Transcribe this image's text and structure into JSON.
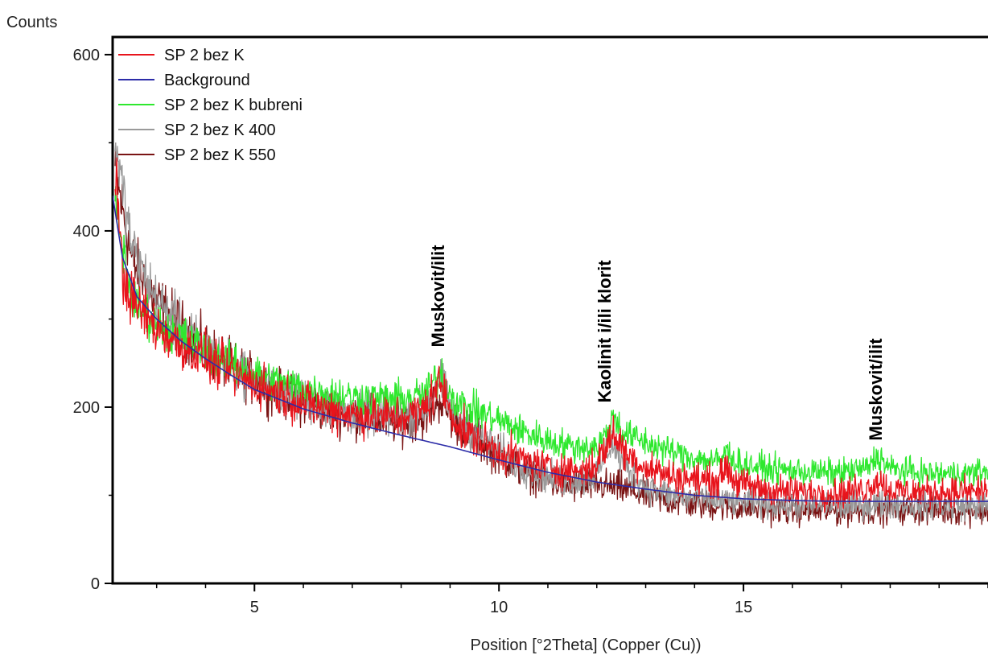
{
  "chart_data": {
    "type": "line",
    "title": "",
    "xlabel": "Position [°2Theta] (Copper (Cu))",
    "ylabel": "Counts",
    "xlim": [
      2.1,
      20
    ],
    "ylim": [
      0,
      620
    ],
    "xticks": [
      5,
      10,
      15
    ],
    "yticks": [
      0,
      200,
      400,
      600
    ],
    "grid": false,
    "legend": "top-left",
    "series": [
      {
        "name": "SP 2 bez K",
        "color": "#e8141c",
        "noise": 16,
        "points": [
          [
            2.15,
            480
          ],
          [
            2.3,
            350
          ],
          [
            2.5,
            320
          ],
          [
            3,
            290
          ],
          [
            3.5,
            270
          ],
          [
            4,
            255
          ],
          [
            4.5,
            240
          ],
          [
            5,
            228
          ],
          [
            5.5,
            215
          ],
          [
            6,
            205
          ],
          [
            6.5,
            198
          ],
          [
            7,
            192
          ],
          [
            7.5,
            190
          ],
          [
            8,
            188
          ],
          [
            8.4,
            195
          ],
          [
            8.65,
            215
          ],
          [
            8.8,
            228
          ],
          [
            8.95,
            205
          ],
          [
            9.2,
            175
          ],
          [
            9.6,
            162
          ],
          [
            10,
            150
          ],
          [
            10.5,
            140
          ],
          [
            11,
            132
          ],
          [
            11.5,
            128
          ],
          [
            11.9,
            130
          ],
          [
            12.2,
            155
          ],
          [
            12.35,
            172
          ],
          [
            12.55,
            150
          ],
          [
            12.9,
            135
          ],
          [
            13.5,
            122
          ],
          [
            14,
            118
          ],
          [
            14.5,
            116
          ],
          [
            14.65,
            135
          ],
          [
            14.8,
            118
          ],
          [
            15,
            112
          ],
          [
            15.5,
            106
          ],
          [
            16,
            104
          ],
          [
            16.5,
            103
          ],
          [
            17,
            103
          ],
          [
            17.5,
            107
          ],
          [
            17.75,
            118
          ],
          [
            18,
            106
          ],
          [
            18.5,
            104
          ],
          [
            19,
            104
          ],
          [
            19.5,
            104
          ],
          [
            20,
            106
          ]
        ]
      },
      {
        "name": "Background",
        "color": "#2c2ca8",
        "noise": 0,
        "points": [
          [
            2.1,
            440
          ],
          [
            2.3,
            370
          ],
          [
            2.6,
            325
          ],
          [
            3,
            300
          ],
          [
            3.5,
            275
          ],
          [
            4,
            255
          ],
          [
            4.5,
            237
          ],
          [
            5,
            220
          ],
          [
            6,
            198
          ],
          [
            7,
            182
          ],
          [
            8,
            168
          ],
          [
            9,
            155
          ],
          [
            10,
            140
          ],
          [
            11,
            126
          ],
          [
            12,
            115
          ],
          [
            13,
            107
          ],
          [
            14,
            100
          ],
          [
            15,
            96
          ],
          [
            16,
            94
          ],
          [
            17,
            93
          ],
          [
            18,
            93
          ],
          [
            19,
            93
          ],
          [
            20,
            93
          ]
        ]
      },
      {
        "name": "SP 2 bez K bubreni",
        "color": "#2ee82e",
        "noise": 13,
        "points": [
          [
            2.15,
            430
          ],
          [
            2.5,
            320
          ],
          [
            3,
            295
          ],
          [
            3.5,
            280
          ],
          [
            4,
            265
          ],
          [
            4.5,
            250
          ],
          [
            5,
            238
          ],
          [
            5.5,
            228
          ],
          [
            6,
            222
          ],
          [
            6.5,
            216
          ],
          [
            7,
            212
          ],
          [
            7.5,
            210
          ],
          [
            8,
            209
          ],
          [
            8.5,
            215
          ],
          [
            8.8,
            240
          ],
          [
            9,
            215
          ],
          [
            9.3,
            200
          ],
          [
            9.7,
            192
          ],
          [
            10,
            185
          ],
          [
            10.5,
            172
          ],
          [
            11,
            162
          ],
          [
            11.5,
            155
          ],
          [
            12,
            155
          ],
          [
            12.2,
            170
          ],
          [
            12.35,
            190
          ],
          [
            12.55,
            170
          ],
          [
            13,
            160
          ],
          [
            13.5,
            150
          ],
          [
            14,
            142
          ],
          [
            14.5,
            138
          ],
          [
            14.65,
            150
          ],
          [
            14.9,
            136
          ],
          [
            15.5,
            130
          ],
          [
            16,
            128
          ],
          [
            16.5,
            126
          ],
          [
            17,
            126
          ],
          [
            17.5,
            130
          ],
          [
            17.75,
            145
          ],
          [
            18,
            130
          ],
          [
            18.5,
            126
          ],
          [
            19,
            124
          ],
          [
            19.5,
            125
          ],
          [
            20,
            127
          ]
        ]
      },
      {
        "name": "SP 2 bez K 400",
        "color": "#9a9a9a",
        "noise": 16,
        "points": [
          [
            2.15,
            500
          ],
          [
            2.5,
            380
          ],
          [
            3,
            320
          ],
          [
            3.5,
            290
          ],
          [
            4,
            265
          ],
          [
            4.5,
            248
          ],
          [
            5,
            232
          ],
          [
            5.5,
            218
          ],
          [
            6,
            208
          ],
          [
            6.5,
            200
          ],
          [
            7,
            193
          ],
          [
            7.5,
            190
          ],
          [
            8,
            187
          ],
          [
            8.5,
            200
          ],
          [
            8.8,
            230
          ],
          [
            9,
            200
          ],
          [
            9.5,
            170
          ],
          [
            10,
            150
          ],
          [
            10.5,
            132
          ],
          [
            11,
            120
          ],
          [
            11.5,
            115
          ],
          [
            12,
            125
          ],
          [
            12.3,
            160
          ],
          [
            12.6,
            130
          ],
          [
            13,
            110
          ],
          [
            13.5,
            100
          ],
          [
            14,
            96
          ],
          [
            14.5,
            95
          ],
          [
            15,
            92
          ],
          [
            15.5,
            90
          ],
          [
            16,
            88
          ],
          [
            16.5,
            88
          ],
          [
            17,
            87
          ],
          [
            17.5,
            89
          ],
          [
            18,
            90
          ],
          [
            18.5,
            89
          ],
          [
            19,
            88
          ],
          [
            19.5,
            88
          ],
          [
            20,
            88
          ]
        ]
      },
      {
        "name": "SP 2 bez K 550",
        "color": "#7a1414",
        "noise": 17,
        "points": [
          [
            2.15,
            470
          ],
          [
            2.5,
            365
          ],
          [
            3,
            320
          ],
          [
            3.5,
            290
          ],
          [
            4,
            267
          ],
          [
            4.5,
            247
          ],
          [
            5,
            230
          ],
          [
            5.5,
            216
          ],
          [
            6,
            205
          ],
          [
            6.5,
            197
          ],
          [
            7,
            190
          ],
          [
            7.5,
            186
          ],
          [
            8,
            183
          ],
          [
            8.5,
            190
          ],
          [
            8.8,
            210
          ],
          [
            9,
            190
          ],
          [
            9.5,
            165
          ],
          [
            10,
            145
          ],
          [
            10.5,
            128
          ],
          [
            11,
            116
          ],
          [
            11.5,
            110
          ],
          [
            12,
            112
          ],
          [
            12.5,
            108
          ],
          [
            13,
            100
          ],
          [
            13.5,
            94
          ],
          [
            14,
            90
          ],
          [
            14.5,
            88
          ],
          [
            15,
            86
          ],
          [
            15.5,
            84
          ],
          [
            16,
            83
          ],
          [
            16.5,
            82
          ],
          [
            17,
            82
          ],
          [
            17.5,
            83
          ],
          [
            18,
            84
          ],
          [
            18.5,
            84
          ],
          [
            19,
            83
          ],
          [
            19.5,
            83
          ],
          [
            20,
            83
          ]
        ]
      }
    ],
    "annotations": [
      {
        "text": "Muskovit/ilit",
        "x": 8.75,
        "y": 268
      },
      {
        "text": "Kaolinit  i/ili  klorit",
        "x": 12.15,
        "y": 205
      },
      {
        "text": "Muskovit/ilit",
        "x": 17.7,
        "y": 162
      }
    ]
  }
}
